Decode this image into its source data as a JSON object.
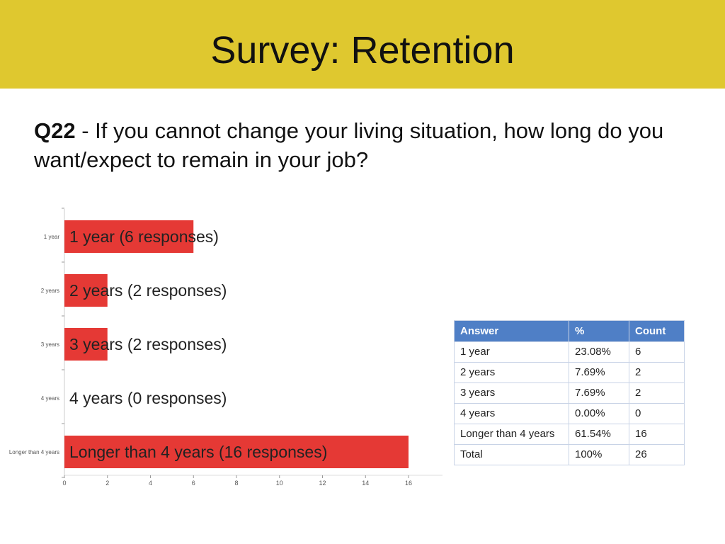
{
  "slide": {
    "title": "Survey: Retention",
    "question_number": "Q22",
    "question_text": " - If you cannot change your living situation, how long do you want/expect to remain in your job?"
  },
  "colors": {
    "title_bar": "#dfc82f",
    "bar": "#e53935",
    "table_header": "#4f7fc6"
  },
  "chart_data": {
    "type": "bar",
    "orientation": "horizontal",
    "categories": [
      "1 year",
      "2 years",
      "3 years",
      "4 years",
      "Longer than 4 years"
    ],
    "bar_labels": [
      "1 year (6 responses)",
      "2 years (2 responses)",
      "3 years (2 responses)",
      "4 years (0 responses)",
      "Longer than 4 years (16 responses)"
    ],
    "values": [
      6,
      2,
      2,
      0,
      16
    ],
    "xlim": [
      0,
      16
    ],
    "xticks": [
      0,
      2,
      4,
      6,
      8,
      10,
      12,
      14,
      16
    ],
    "grid": false
  },
  "table": {
    "headers": [
      "Answer",
      "%",
      "Count"
    ],
    "rows": [
      [
        "1 year",
        "23.08%",
        "6"
      ],
      [
        "2 years",
        "7.69%",
        "2"
      ],
      [
        "3 years",
        "7.69%",
        "2"
      ],
      [
        "4 years",
        "0.00%",
        "0"
      ],
      [
        "Longer than 4 years",
        "61.54%",
        "16"
      ],
      [
        "Total",
        "100%",
        "26"
      ]
    ]
  }
}
